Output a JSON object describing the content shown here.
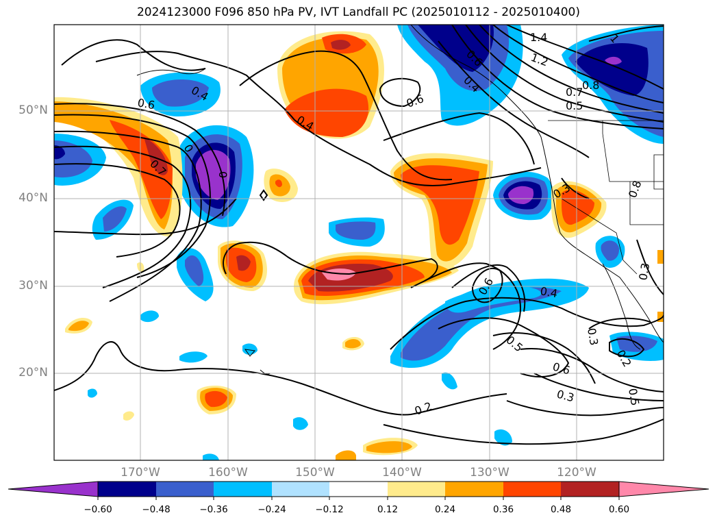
{
  "title": "2024123000 F096 850 hPa PV, IVT Landfall PC (2025010112 - 2025010400)",
  "lat_labels": [
    "50°N",
    "40°N",
    "30°N",
    "20°N"
  ],
  "lon_labels": [
    "170°W",
    "160°W",
    "150°W",
    "140°W",
    "130°W",
    "120°W"
  ],
  "colorbar": {
    "ticks": [
      "−0.60",
      "−0.48",
      "−0.36",
      "−0.24",
      "−0.12",
      "0.12",
      "0.24",
      "0.36",
      "0.48",
      "0.60"
    ],
    "colors": [
      "#9932cc",
      "#00008b",
      "#3a5fcd",
      "#00bfff",
      "#b0e2ff",
      "#ffffff",
      "#ffeb8c",
      "#ffa500",
      "#ff4500",
      "#b22222",
      "#ff88aa"
    ]
  },
  "contour_labels": [
    "1.4",
    "1.2",
    "1",
    "0.8",
    "0.7",
    "0.6",
    "0.5",
    "0.4",
    "0.6",
    "0.4",
    "0.6",
    "0.4",
    "0.7",
    "0",
    "0",
    "0.3",
    "0.8",
    "0.6",
    "0.4",
    "0.5",
    "0.6",
    "0.3",
    "0.3",
    "0.2",
    "0.2",
    "0.5",
    "0.3"
  ]
}
